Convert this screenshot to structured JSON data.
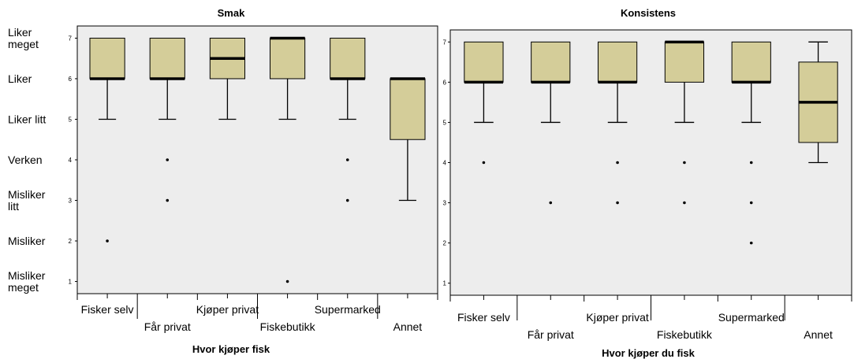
{
  "colors": {
    "plot_bg": "#ededed",
    "box_fill": "#d4cd99",
    "stroke": "#000000"
  },
  "chart_data": [
    {
      "type": "box",
      "title": "Smak",
      "xlabel": "Hvor kjøper fisk",
      "ylabel": "",
      "ylim": [
        0.7,
        7.3
      ],
      "yticks": [
        1,
        2,
        3,
        4,
        5,
        6,
        7
      ],
      "ytick_labels": [
        {
          "value": 7,
          "lines": [
            "Liker",
            "meget"
          ]
        },
        {
          "value": 6,
          "lines": [
            "Liker"
          ]
        },
        {
          "value": 5,
          "lines": [
            "Liker litt"
          ]
        },
        {
          "value": 4,
          "lines": [
            "Verken"
          ]
        },
        {
          "value": 3,
          "lines": [
            "Misliker",
            "litt"
          ]
        },
        {
          "value": 2,
          "lines": [
            "Misliker"
          ]
        },
        {
          "value": 1,
          "lines": [
            "Misliker",
            "meget"
          ]
        }
      ],
      "categories": [
        "Fisker selv",
        "Får privat",
        "Kjøper privat",
        "Fiskebutikk",
        "Supermarked",
        "Annet"
      ],
      "boxes": [
        {
          "category": "Fisker selv",
          "whisker_low": 5,
          "q1": 6,
          "median": 6,
          "q3": 7,
          "whisker_high": 7,
          "outliers": [
            2
          ]
        },
        {
          "category": "Får privat",
          "whisker_low": 5,
          "q1": 6,
          "median": 6,
          "q3": 7,
          "whisker_high": 7,
          "outliers": [
            3,
            4
          ]
        },
        {
          "category": "Kjøper privat",
          "whisker_low": 5,
          "q1": 6,
          "median": 6.5,
          "q3": 7,
          "whisker_high": 7,
          "outliers": []
        },
        {
          "category": "Fiskebutikk",
          "whisker_low": 5,
          "q1": 6,
          "median": 7,
          "q3": 7,
          "whisker_high": 7,
          "outliers": [
            1
          ]
        },
        {
          "category": "Supermarked",
          "whisker_low": 5,
          "q1": 6,
          "median": 6,
          "q3": 7,
          "whisker_high": 7,
          "outliers": [
            3,
            4
          ]
        },
        {
          "category": "Annet",
          "whisker_low": 3,
          "q1": 4.5,
          "median": 6,
          "q3": 6,
          "whisker_high": 6,
          "outliers": []
        }
      ]
    },
    {
      "type": "box",
      "title": "Konsistens",
      "xlabel": "Hvor kjøper du fisk",
      "ylabel": "",
      "ylim": [
        0.7,
        7.3
      ],
      "yticks": [
        1,
        2,
        3,
        4,
        5,
        6,
        7
      ],
      "categories": [
        "Fisker selv",
        "Får privat",
        "Kjøper privat",
        "Fiskebutikk",
        "Supermarked",
        "Annet"
      ],
      "boxes": [
        {
          "category": "Fisker selv",
          "whisker_low": 5,
          "q1": 6,
          "median": 6,
          "q3": 7,
          "whisker_high": 7,
          "outliers": [
            4
          ]
        },
        {
          "category": "Får privat",
          "whisker_low": 5,
          "q1": 6,
          "median": 6,
          "q3": 7,
          "whisker_high": 7,
          "outliers": [
            3
          ]
        },
        {
          "category": "Kjøper privat",
          "whisker_low": 5,
          "q1": 6,
          "median": 6,
          "q3": 7,
          "whisker_high": 7,
          "outliers": [
            3,
            4
          ]
        },
        {
          "category": "Fiskebutikk",
          "whisker_low": 5,
          "q1": 6,
          "median": 7,
          "q3": 7,
          "whisker_high": 7,
          "outliers": [
            3,
            4
          ]
        },
        {
          "category": "Supermarked",
          "whisker_low": 5,
          "q1": 6,
          "median": 6,
          "q3": 7,
          "whisker_high": 7,
          "outliers": [
            2,
            3,
            4
          ]
        },
        {
          "category": "Annet",
          "whisker_low": 4,
          "q1": 4.5,
          "median": 5.5,
          "q3": 6.5,
          "whisker_high": 7,
          "outliers": []
        }
      ]
    }
  ]
}
